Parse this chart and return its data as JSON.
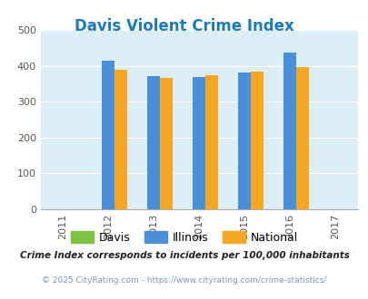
{
  "title": "Davis Violent Crime Index",
  "title_color": "#1a7abf",
  "years": [
    2011,
    2012,
    2013,
    2014,
    2015,
    2016,
    2017
  ],
  "data_years": [
    2012,
    2013,
    2014,
    2015,
    2016
  ],
  "davis": [
    0,
    0,
    0,
    0,
    0
  ],
  "illinois": [
    415,
    372,
    368,
    382,
    438
  ],
  "national": [
    390,
    366,
    375,
    383,
    396
  ],
  "davis_color": "#7dc242",
  "illinois_color": "#4a90d9",
  "national_color": "#f5a623",
  "bg_color": "#dceef5",
  "ylim": [
    0,
    500
  ],
  "yticks": [
    0,
    100,
    200,
    300,
    400,
    500
  ],
  "bar_width": 0.28,
  "footer1": "Crime Index corresponds to incidents per 100,000 inhabitants",
  "footer2": "© 2025 CityRating.com - https://www.cityrating.com/crime-statistics/",
  "legend_labels": [
    "Davis",
    "Illinois",
    "National"
  ],
  "figsize": [
    4.06,
    3.3
  ],
  "dpi": 100
}
